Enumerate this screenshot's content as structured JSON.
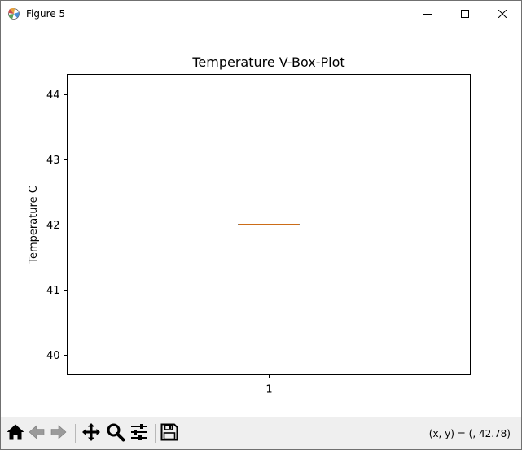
{
  "window": {
    "title": "Figure 5"
  },
  "icons": {
    "app": "matplotlib-figure-icon",
    "minimize": "minimize-icon",
    "maximize": "maximize-icon",
    "close": "close-icon",
    "home": "home-icon",
    "back": "back-arrow-icon",
    "forward": "forward-arrow-icon",
    "pan": "pan-move-icon",
    "zoom": "zoom-magnifier-icon",
    "configure": "configure-subplots-icon",
    "save": "save-floppy-icon"
  },
  "toolbar": {
    "coords_text": "(x, y) = (, 42.78)"
  },
  "colors": {
    "median": "#ff7f0e",
    "box": "#000000",
    "toolbar_bg": "#efefef"
  },
  "chart_data": {
    "type": "boxplot",
    "title": "Temperature V-Box-Plot",
    "xlabel": "",
    "ylabel": "Temperature C",
    "categories": [
      "1"
    ],
    "boxes": [
      {
        "category": "1",
        "min": 42,
        "q1": 42,
        "median": 42,
        "q3": 42,
        "max": 42
      }
    ],
    "xlim": [
      0.5,
      1.5
    ],
    "ylim": [
      39.7,
      44.3
    ],
    "yticks": [
      40,
      41,
      42,
      43,
      44
    ],
    "grid": false
  }
}
